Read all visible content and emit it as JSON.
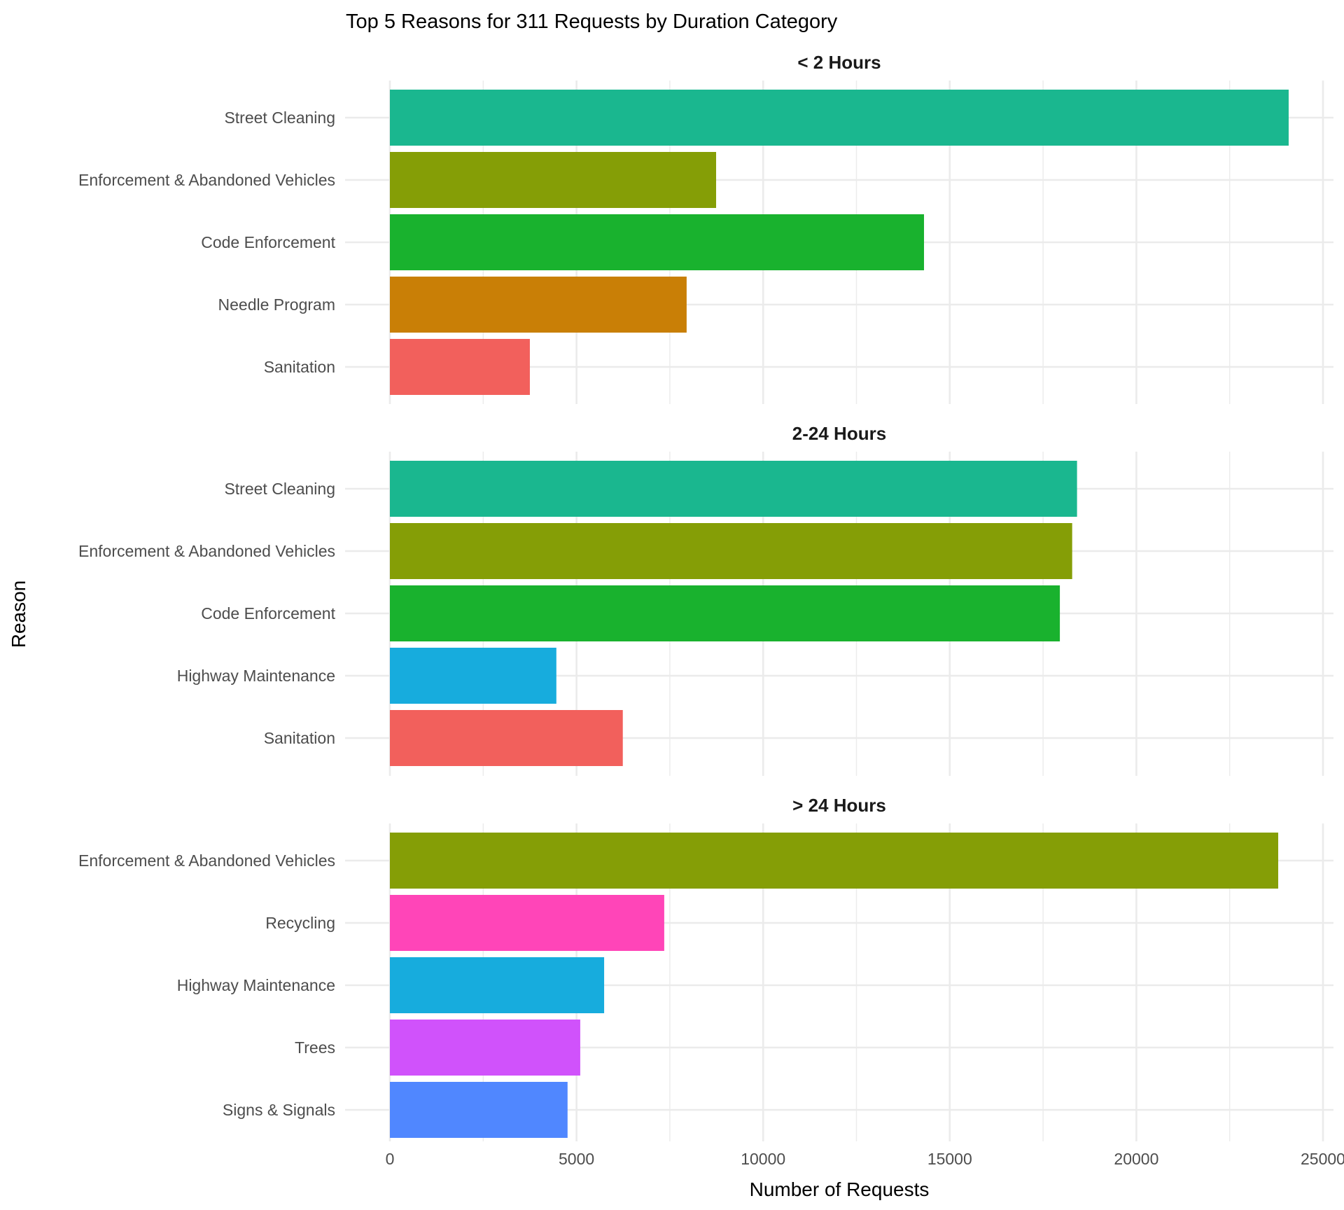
{
  "chart_data": {
    "type": "bar",
    "orientation": "horizontal",
    "faceted": true,
    "title": "Top 5 Reasons for 311 Requests by Duration Category",
    "xlabel": "Number of Requests",
    "ylabel": "Reason",
    "xlim": [
      0,
      25000
    ],
    "x_ticks": [
      0,
      5000,
      10000,
      15000,
      20000,
      25000
    ],
    "x_tick_labels": [
      "0",
      "5000",
      "10000",
      "15000",
      "20000",
      "25000"
    ],
    "grid": true,
    "legend": "none",
    "colors": {
      "Street Cleaning": "#1AB78F",
      "Enforcement & Abandoned Vehicles": "#859E06",
      "Code Enforcement": "#19B22E",
      "Needle Program": "#C97F06",
      "Sanitation": "#F2605C",
      "Highway Maintenance": "#17ACDD",
      "Recycling": "#FF45B8",
      "Trees": "#D052FB",
      "Signs & Signals": "#5087FF"
    },
    "panels": [
      {
        "label": "< 2 Hours",
        "categories": [
          "Street Cleaning",
          "Enforcement & Abandoned Vehicles",
          "Code Enforcement",
          "Needle Program",
          "Sanitation"
        ],
        "values": [
          24080,
          8740,
          14310,
          7950,
          3750
        ]
      },
      {
        "label": "2-24 Hours",
        "categories": [
          "Street Cleaning",
          "Enforcement & Abandoned Vehicles",
          "Code Enforcement",
          "Highway Maintenance",
          "Sanitation"
        ],
        "values": [
          18410,
          18280,
          17950,
          4460,
          6240
        ]
      },
      {
        "label": "> 24 Hours",
        "categories": [
          "Enforcement & Abandoned Vehicles",
          "Recycling",
          "Highway Maintenance",
          "Trees",
          "Signs & Signals"
        ],
        "values": [
          23800,
          7350,
          5740,
          5100,
          4760
        ]
      }
    ]
  }
}
